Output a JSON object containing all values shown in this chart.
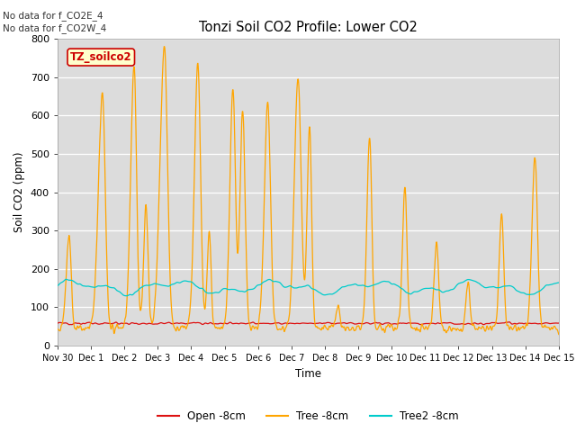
{
  "title": "Tonzi Soil CO2 Profile: Lower CO2",
  "xlabel": "Time",
  "ylabel": "Soil CO2 (ppm)",
  "ylim": [
    0,
    800
  ],
  "yticks": [
    0,
    100,
    200,
    300,
    400,
    500,
    600,
    700,
    800
  ],
  "no_data_text": [
    "No data for f_CO2E_4",
    "No data for f_CO2W_4"
  ],
  "watermark_text": "TZ_soilco2",
  "legend_labels": [
    "Open -8cm",
    "Tree -8cm",
    "Tree2 -8cm"
  ],
  "colors": {
    "open": "#dd1111",
    "tree": "#ffa500",
    "tree2": "#00cccc",
    "background": "#dcdcdc",
    "watermark_bg": "#ffffcc",
    "watermark_border": "#cc0000"
  },
  "x_tick_labels": [
    "Nov 30",
    "Dec 1",
    "Dec 2",
    "Dec 3",
    "Dec 4",
    "Dec 5",
    "Dec 6",
    "Dec 7",
    "Dec 8",
    "Dec 9",
    "Dec 10",
    "Dec 11",
    "Dec 12",
    "Dec 13",
    "Dec 14",
    "Dec 15"
  ],
  "x_tick_positions": [
    0,
    1,
    2,
    3,
    4,
    5,
    6,
    7,
    8,
    9,
    10,
    11,
    12,
    13,
    14,
    15
  ]
}
